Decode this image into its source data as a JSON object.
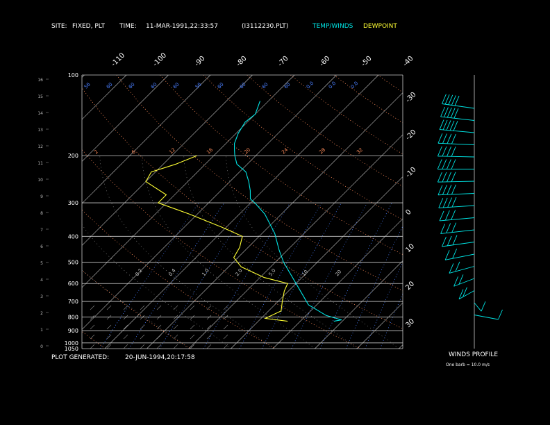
{
  "header": {
    "site_label": "SITE:",
    "site_value": "FIXED, PLT",
    "time_label": "TIME:",
    "time_value": "11-MAR-1991,22:33:57",
    "file_name": "(I3112230.PLT)",
    "legend_temp": "TEMP/WINDS",
    "legend_dew": "DEWPOINT"
  },
  "footer": {
    "generated_label": "PLOT GENERATED:",
    "generated_value": "20-JUN-1994,20:17:58",
    "winds_title": "WINDS PROFILE",
    "winds_note": "One barb = 10.0 m/s"
  },
  "colors": {
    "temperature": "#00e5e5",
    "dewpoint": "#ffff33",
    "mixing_ratio": "#4a7fff",
    "dry_adiabat": "#ff8c5a",
    "isotherm": "#cccccc",
    "isobar": "#cccccc",
    "winds": "#00e5e5"
  },
  "chart_data": {
    "type": "line",
    "title": "",
    "pressure_levels": [
      100,
      200,
      300,
      400,
      500,
      600,
      700,
      800,
      900,
      1000,
      1050
    ],
    "height_ticks_km": [
      "16",
      "15",
      "14",
      "13",
      "12",
      "11",
      "10",
      "9",
      "8",
      "7",
      "6",
      "5",
      "4",
      "3",
      "2",
      "1",
      "0"
    ],
    "isotherm_top_labels": [
      "-110",
      "-100",
      "-90",
      "-80",
      "-70",
      "-60",
      "-50",
      "-40"
    ],
    "isotherm_right_labels": [
      "-30",
      "-20",
      "-10",
      "0",
      "10",
      "20",
      "30"
    ],
    "mixing_ratio_labels": [
      "56",
      "60",
      "60",
      "60",
      "60",
      "56",
      "60",
      "60",
      "60",
      "60",
      "0.0",
      "0.0",
      "0.0"
    ],
    "mixing_ratio_lower_labels": [
      "0.2",
      "0.4",
      "1.0",
      "2.0",
      "5.0",
      "10",
      "20"
    ],
    "adiabat_labels": [
      "2",
      "6",
      "12",
      "16",
      "20",
      "24",
      "28",
      "32"
    ],
    "series": [
      {
        "name": "TEMP/WINDS",
        "points": [
          [
            830,
            8.0
          ],
          [
            820,
            9.5
          ],
          [
            790,
            4.8
          ],
          [
            720,
            -2.0
          ],
          [
            600,
            -10.0
          ],
          [
            500,
            -18.0
          ],
          [
            450,
            -22.0
          ],
          [
            390,
            -27.0
          ],
          [
            330,
            -34.0
          ],
          [
            300,
            -39.0
          ],
          [
            290,
            -41.0
          ],
          [
            270,
            -43.0
          ],
          [
            250,
            -45.5
          ],
          [
            230,
            -48.5
          ],
          [
            215,
            -52.5
          ],
          [
            200,
            -55.0
          ],
          [
            190,
            -56.5
          ],
          [
            180,
            -58.0
          ],
          [
            165,
            -59.5
          ],
          [
            150,
            -60.5
          ],
          [
            140,
            -60.0
          ],
          [
            125,
            -62.0
          ]
        ]
      },
      {
        "name": "DEWPOINT",
        "points": [
          [
            830,
            -3.0
          ],
          [
            810,
            -9.0
          ],
          [
            760,
            -7.0
          ],
          [
            700,
            -9.0
          ],
          [
            640,
            -11.0
          ],
          [
            600,
            -12.0
          ],
          [
            570,
            -19.0
          ],
          [
            520,
            -27.0
          ],
          [
            480,
            -31.0
          ],
          [
            440,
            -32.0
          ],
          [
            400,
            -34.0
          ],
          [
            370,
            -41.0
          ],
          [
            330,
            -52.0
          ],
          [
            300,
            -62.0
          ],
          [
            280,
            -62.0
          ],
          [
            250,
            -70.0
          ],
          [
            230,
            -71.0
          ],
          [
            215,
            -67.0
          ],
          [
            200,
            -64.0
          ]
        ]
      }
    ],
    "winds": [
      {
        "speed": 25,
        "dir": 60
      },
      {
        "speed": 25,
        "dir": 65
      },
      {
        "speed": 25,
        "dir": 70
      },
      {
        "speed": 20,
        "dir": 80
      },
      {
        "speed": 20,
        "dir": 85
      },
      {
        "speed": 20,
        "dir": 90
      },
      {
        "speed": 20,
        "dir": 95
      },
      {
        "speed": 20,
        "dir": 100
      },
      {
        "speed": 20,
        "dir": 105
      },
      {
        "speed": 15,
        "dir": 110
      },
      {
        "speed": 15,
        "dir": 115
      },
      {
        "speed": 15,
        "dir": 120
      },
      {
        "speed": 10,
        "dir": 130
      },
      {
        "speed": 10,
        "dir": 140
      },
      {
        "speed": 10,
        "dir": 150
      },
      {
        "speed": 10,
        "dir": 160
      },
      {
        "speed": 5,
        "dir": 200
      },
      {
        "speed": 5,
        "dir": 240
      }
    ],
    "grid": true,
    "legend_placement": "top-right"
  }
}
